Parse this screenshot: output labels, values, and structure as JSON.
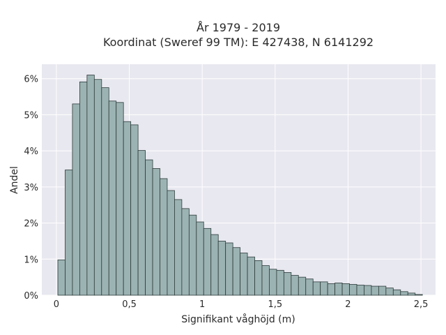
{
  "chart_data": {
    "type": "bar",
    "title_line1": "År 1979 - 2019",
    "title_line2": "Koordinat (Sweref 99 TM): E 427438, N 6141292",
    "xlabel": "Signifikant våghöjd (m)",
    "ylabel": "Andel",
    "grid": true,
    "xlim": [
      -0.1,
      2.6
    ],
    "ylim": [
      0,
      6.4
    ],
    "x_ticks": [
      {
        "value": 0,
        "label": "0"
      },
      {
        "value": 0.5,
        "label": "0,5"
      },
      {
        "value": 1,
        "label": "1"
      },
      {
        "value": 1.5,
        "label": "1,5"
      },
      {
        "value": 2,
        "label": "2"
      },
      {
        "value": 2.5,
        "label": "2,5"
      }
    ],
    "y_ticks": [
      {
        "value": 0,
        "label": "0%"
      },
      {
        "value": 1,
        "label": "1%"
      },
      {
        "value": 2,
        "label": "2%"
      },
      {
        "value": 3,
        "label": "3%"
      },
      {
        "value": 4,
        "label": "4%"
      },
      {
        "value": 5,
        "label": "5%"
      },
      {
        "value": 6,
        "label": "6%"
      }
    ],
    "bin_start": 0.01,
    "bin_width": 0.05,
    "values_percent": [
      0.98,
      3.47,
      5.3,
      5.91,
      6.1,
      5.98,
      5.75,
      5.38,
      5.34,
      4.81,
      4.72,
      4.01,
      3.75,
      3.51,
      3.23,
      2.9,
      2.65,
      2.4,
      2.22,
      2.03,
      1.85,
      1.68,
      1.5,
      1.45,
      1.32,
      1.17,
      1.06,
      0.96,
      0.82,
      0.72,
      0.69,
      0.63,
      0.55,
      0.5,
      0.45,
      0.37,
      0.37,
      0.32,
      0.34,
      0.32,
      0.3,
      0.28,
      0.27,
      0.25,
      0.25,
      0.2,
      0.15,
      0.1,
      0.06,
      0.02
    ]
  },
  "colors": {
    "background": "#ffffff",
    "plot_background": "#e8e8f0",
    "grid": "#ffffff",
    "bar_fill": "#9cb3b3",
    "bar_stroke": "#2c3a3a"
  }
}
